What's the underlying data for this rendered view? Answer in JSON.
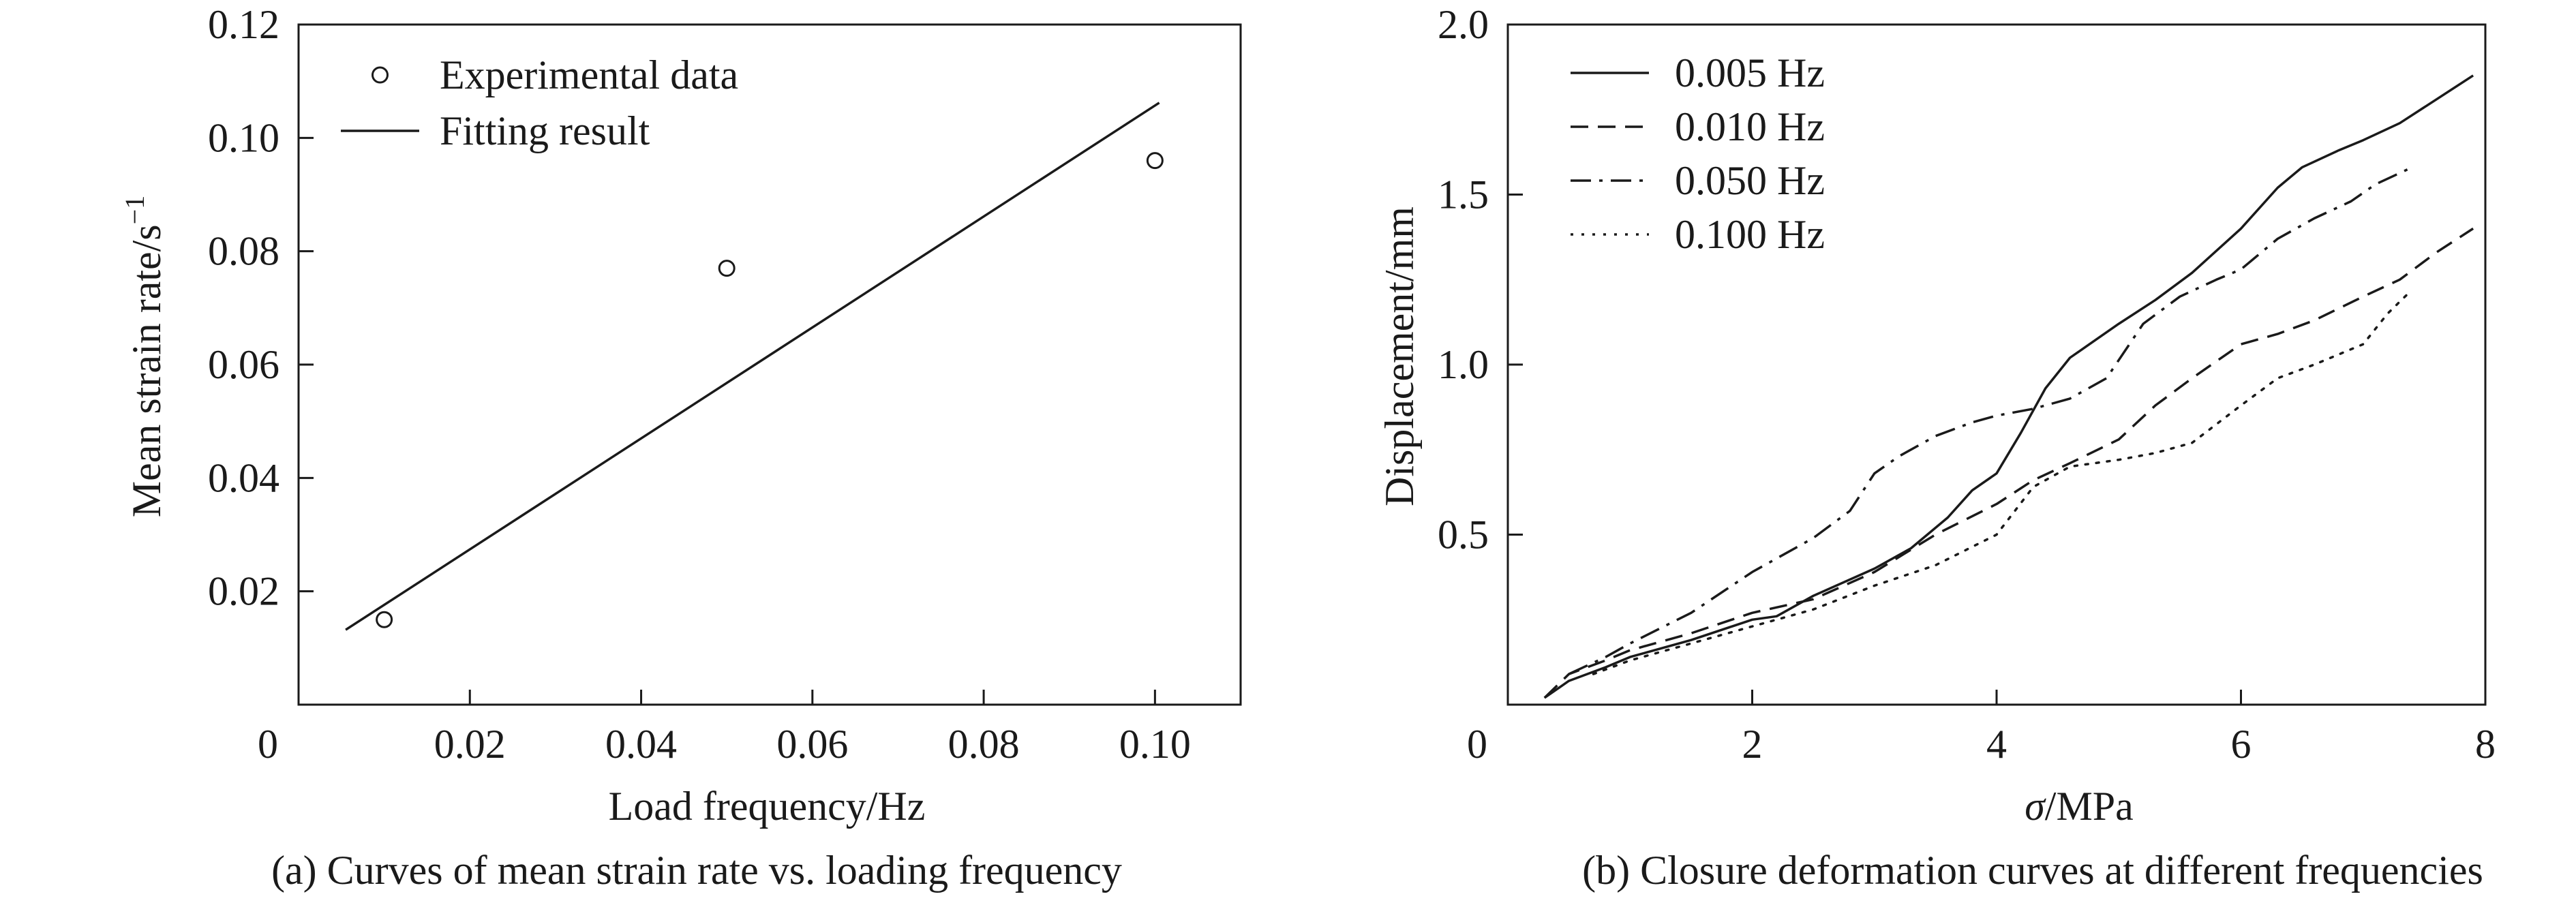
{
  "figure": {
    "background": "#ffffff",
    "ink": "#1a1a1a"
  },
  "chart_data": [
    {
      "id": "a",
      "type": "scatter",
      "caption": "(a) Curves of mean strain rate vs. loading frequency",
      "xlabel": "Load frequency/Hz",
      "ylabel_main": "Mean strain rate/s",
      "ylabel_sup": "−1",
      "xlim": [
        0,
        0.11
      ],
      "ylim": [
        0,
        0.12
      ],
      "xticks": [
        0,
        0.02,
        0.04,
        0.06,
        0.08,
        0.1
      ],
      "xtick_labels": [
        "0",
        "0.02",
        "0.04",
        "0.06",
        "0.08",
        "0.10"
      ],
      "yticks": [
        0.02,
        0.04,
        0.06,
        0.08,
        0.1,
        0.12
      ],
      "ytick_labels": [
        "0.02",
        "0.04",
        "0.06",
        "0.08",
        "0.10",
        "0.12"
      ],
      "grid": false,
      "legend_position": "top-left",
      "series": [
        {
          "name": "Experimental data",
          "style": "open-circle",
          "x": [
            0.01,
            0.05,
            0.1
          ],
          "y": [
            0.015,
            0.077,
            0.096
          ]
        },
        {
          "name": "Fitting result",
          "style": "solid",
          "x": [
            0.0055,
            0.1005
          ],
          "y": [
            0.0132,
            0.1062
          ]
        }
      ]
    },
    {
      "id": "b",
      "type": "line",
      "caption": "(b) Closure deformation curves at different frequencies",
      "xlabel_symbol": "σ",
      "xlabel_unit": "/MPa",
      "ylabel": "Displacement/mm",
      "xlim": [
        0,
        8
      ],
      "ylim": [
        0,
        2.0
      ],
      "xticks": [
        0,
        2,
        4,
        6,
        8
      ],
      "xtick_labels": [
        "0",
        "2",
        "4",
        "6",
        "8"
      ],
      "yticks": [
        0.5,
        1.0,
        1.5,
        2.0
      ],
      "ytick_labels": [
        "0.5",
        "1.0",
        "1.5",
        "2.0"
      ],
      "grid": false,
      "legend_position": "top-left",
      "series": [
        {
          "name": "0.005 Hz",
          "style": "solid",
          "x": [
            0.3,
            0.5,
            0.8,
            1.0,
            1.5,
            2.0,
            2.2,
            2.5,
            3.0,
            3.3,
            3.6,
            3.8,
            4.0,
            4.2,
            4.4,
            4.6,
            4.8,
            5.0,
            5.3,
            5.6,
            6.0,
            6.3,
            6.5,
            6.8,
            7.0,
            7.3,
            7.6,
            7.9
          ],
          "y": [
            0.02,
            0.07,
            0.11,
            0.14,
            0.19,
            0.25,
            0.26,
            0.32,
            0.4,
            0.46,
            0.55,
            0.63,
            0.68,
            0.8,
            0.93,
            1.02,
            1.07,
            1.12,
            1.19,
            1.27,
            1.4,
            1.52,
            1.58,
            1.63,
            1.66,
            1.71,
            1.78,
            1.85
          ]
        },
        {
          "name": "0.010 Hz",
          "style": "dashed",
          "x": [
            0.3,
            0.5,
            0.8,
            1.0,
            1.5,
            2.0,
            2.5,
            3.0,
            3.5,
            4.0,
            4.3,
            4.6,
            5.0,
            5.3,
            5.6,
            6.0,
            6.3,
            6.6,
            7.0,
            7.3,
            7.6,
            7.9
          ],
          "y": [
            0.02,
            0.09,
            0.13,
            0.16,
            0.21,
            0.27,
            0.31,
            0.39,
            0.5,
            0.59,
            0.66,
            0.71,
            0.78,
            0.88,
            0.96,
            1.06,
            1.09,
            1.13,
            1.2,
            1.25,
            1.33,
            1.4
          ]
        },
        {
          "name": "0.050 Hz",
          "style": "dashdot",
          "x": [
            0.5,
            0.8,
            1.0,
            1.5,
            2.0,
            2.5,
            2.8,
            3.0,
            3.2,
            3.5,
            3.8,
            4.0,
            4.3,
            4.6,
            4.9,
            5.2,
            5.5,
            5.8,
            6.0,
            6.3,
            6.6,
            6.9,
            7.1,
            7.4
          ],
          "y": [
            0.09,
            0.14,
            0.18,
            0.27,
            0.39,
            0.49,
            0.57,
            0.68,
            0.73,
            0.79,
            0.83,
            0.85,
            0.87,
            0.9,
            0.96,
            1.12,
            1.2,
            1.25,
            1.28,
            1.37,
            1.43,
            1.48,
            1.53,
            1.58
          ]
        },
        {
          "name": "0.100 Hz",
          "style": "dotted",
          "x": [
            0.7,
            1.0,
            1.5,
            2.0,
            2.5,
            3.0,
            3.5,
            4.0,
            4.3,
            4.6,
            5.0,
            5.3,
            5.6,
            6.0,
            6.3,
            6.6,
            7.0,
            7.2,
            7.4
          ],
          "y": [
            0.09,
            0.13,
            0.18,
            0.23,
            0.28,
            0.35,
            0.41,
            0.5,
            0.64,
            0.7,
            0.72,
            0.74,
            0.77,
            0.88,
            0.96,
            1.0,
            1.06,
            1.15,
            1.22
          ]
        }
      ]
    }
  ]
}
